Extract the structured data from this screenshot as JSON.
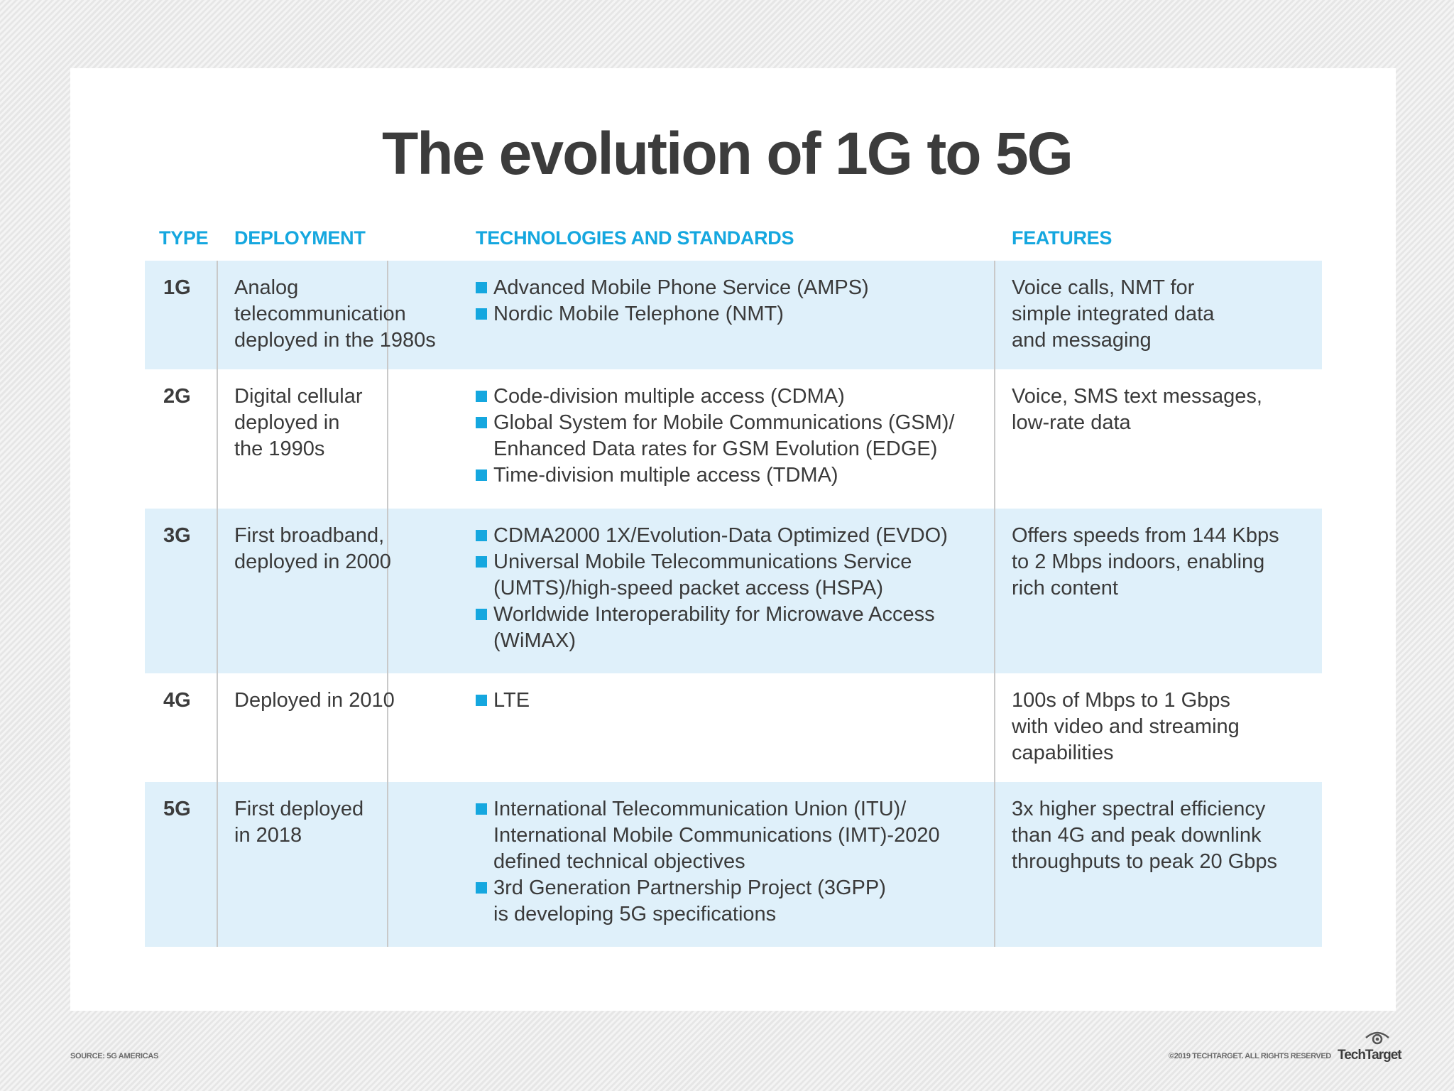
{
  "title": "The evolution of 1G to 5G",
  "columns": {
    "type": "TYPE",
    "deployment": "DEPLOYMENT",
    "technologies": "TECHNOLOGIES AND STANDARDS",
    "features": "FEATURES"
  },
  "rows": [
    {
      "type": "1G",
      "deployment": [
        "Analog",
        "telecommunication",
        "deployed in the 1980s"
      ],
      "technologies": [
        [
          "Advanced Mobile Phone Service (AMPS)"
        ],
        [
          "Nordic Mobile Telephone (NMT)"
        ]
      ],
      "features": [
        "Voice calls, NMT for",
        "simple integrated data",
        "and messaging"
      ]
    },
    {
      "type": "2G",
      "deployment": [
        "Digital cellular",
        "deployed in",
        "the 1990s"
      ],
      "technologies": [
        [
          "Code-division multiple access (CDMA)"
        ],
        [
          "Global System for Mobile Communications (GSM)/",
          "Enhanced Data rates for GSM Evolution (EDGE)"
        ],
        [
          "Time-division multiple access (TDMA)"
        ]
      ],
      "features": [
        "Voice, SMS text messages,",
        "low-rate data"
      ]
    },
    {
      "type": "3G",
      "deployment": [
        "First broadband,",
        "deployed in 2000"
      ],
      "technologies": [
        [
          "CDMA2000 1X/Evolution-Data Optimized (EVDO)"
        ],
        [
          "Universal Mobile Telecommunications Service",
          "(UMTS)/high-speed packet access (HSPA)"
        ],
        [
          "Worldwide Interoperability for Microwave Access",
          "(WiMAX)"
        ]
      ],
      "features": [
        "Offers speeds from 144 Kbps",
        "to 2 Mbps indoors, enabling",
        "rich content"
      ]
    },
    {
      "type": "4G",
      "deployment": [
        "Deployed in 2010"
      ],
      "technologies": [
        [
          "LTE"
        ]
      ],
      "features": [
        "100s of Mbps to 1 Gbps",
        "with video and streaming",
        "capabilities"
      ]
    },
    {
      "type": "5G",
      "deployment": [
        "First deployed",
        "in 2018"
      ],
      "technologies": [
        [
          "International Telecommunication Union (ITU)/",
          "International Mobile Communications (IMT)-2020",
          "defined technical objectives"
        ],
        [
          "3rd Generation Partnership Project (3GPP)",
          "is developing 5G specifications"
        ]
      ],
      "features": [
        "3x higher spectral efficiency",
        "than 4G and peak downlink",
        "throughputs to peak 20 Gbps"
      ]
    }
  ],
  "footer": {
    "source": "SOURCE: 5G AMERICAS",
    "copyright": "©2019 TECHTARGET. ALL RIGHTS RESERVED",
    "logo": "TechTarget"
  },
  "colors": {
    "accent": "#15a7df",
    "row_shade": "#dff0fa",
    "title": "#3c3c3c"
  },
  "icons": {
    "bullet": "blue-square-bullet-icon",
    "logo": "eye-icon"
  }
}
